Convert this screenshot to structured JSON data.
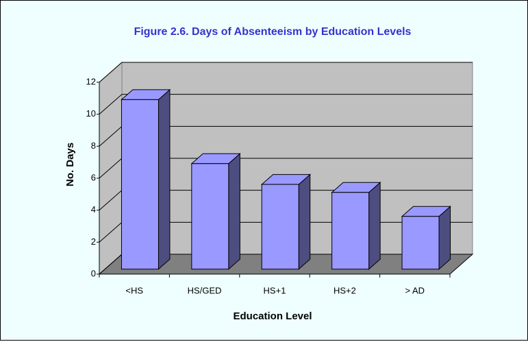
{
  "chart_data": {
    "type": "bar3d",
    "title": "Figure 2.6. Days of Absenteeism by Education Levels",
    "categories": [
      "<HS",
      "HS/GED",
      "HS+1",
      "HS+2",
      "> AD"
    ],
    "values": [
      10.6,
      6.6,
      5.3,
      4.8,
      3.3
    ],
    "color": "#9999ff",
    "x_label": "Education Level",
    "y_label": "No. Days",
    "ylim": [
      0,
      12
    ],
    "yticks": [
      0,
      2,
      4,
      6,
      8,
      10,
      12
    ],
    "grid": true
  }
}
